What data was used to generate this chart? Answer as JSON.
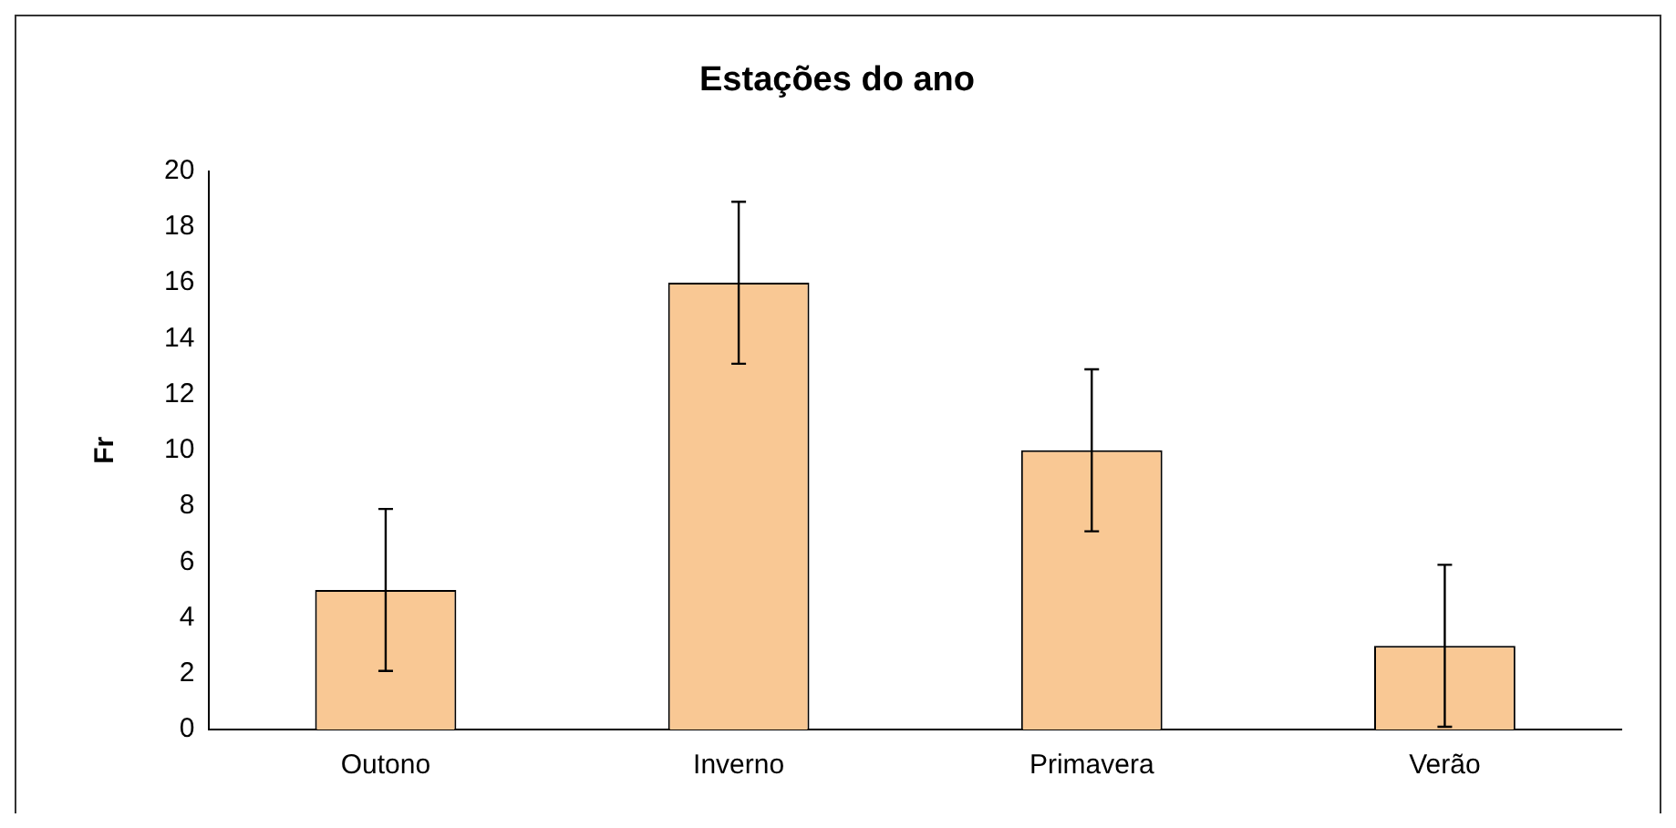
{
  "chart_data": {
    "type": "bar",
    "title": "Estações do ano",
    "ylabel": "Fr",
    "categories": [
      "Outono",
      "Inverno",
      "Primavera",
      "Verão"
    ],
    "values": [
      5,
      16,
      10,
      3
    ],
    "errors": [
      2.9,
      2.9,
      2.9,
      2.9
    ],
    "color": "#f9c894",
    "ylim": [
      0,
      20
    ],
    "yticks": [
      0,
      2,
      4,
      6,
      8,
      10,
      12,
      14,
      16,
      18,
      20
    ],
    "grid": false,
    "legend": false
  }
}
